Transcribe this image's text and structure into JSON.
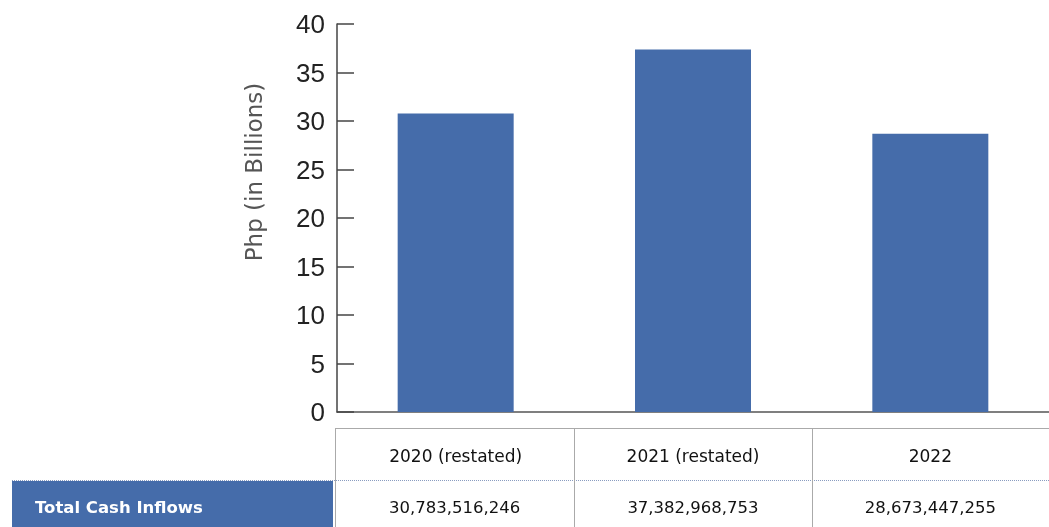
{
  "chart_data": {
    "type": "bar",
    "ylabel": "Php (in Billions)",
    "categories": [
      "2020 (restated)",
      "2021 (restated)",
      "2022"
    ],
    "series": [
      {
        "name": "Total Cash Inflows",
        "color": "#456caa",
        "values": [
          30.783516246,
          37.382968753,
          28.673447255
        ]
      }
    ],
    "annotations": [
      "30,783,516,246",
      "37,382,968,753",
      "28,673,447,255"
    ],
    "ylim": [
      0,
      40
    ],
    "yticks": [
      0,
      5,
      10,
      15,
      20,
      25,
      30,
      35,
      40
    ],
    "grid": false
  }
}
